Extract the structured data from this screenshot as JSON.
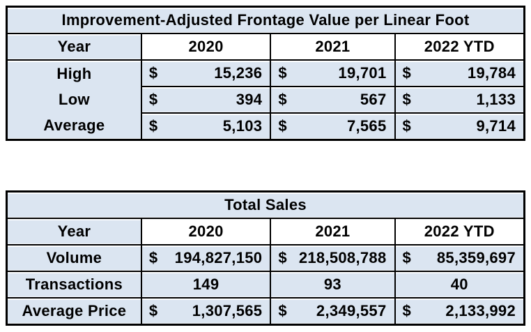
{
  "currency_symbol": "$",
  "colors": {
    "cell_blue": "#dbe5f1",
    "cell_white": "#ffffff",
    "border_black": "#000000",
    "text_black": "#000000"
  },
  "tables": [
    {
      "title": "Improvement-Adjusted Frontage Value per Linear Foot",
      "year_header": {
        "label": "Year",
        "years": [
          "2020",
          "2021",
          "2022 YTD"
        ]
      },
      "rows": [
        {
          "label": "High",
          "currency": true,
          "values": [
            "15,236",
            "19,701",
            "19,784"
          ]
        },
        {
          "label": "Low",
          "currency": true,
          "values": [
            "394",
            "567",
            "1,133"
          ]
        },
        {
          "label": "Average",
          "currency": true,
          "values": [
            "5,103",
            "7,565",
            "9,714"
          ]
        }
      ]
    },
    {
      "title": "Total Sales",
      "year_header": {
        "label": "Year",
        "years": [
          "2020",
          "2021",
          "2022 YTD"
        ]
      },
      "rows": [
        {
          "label": "Volume",
          "currency": true,
          "values": [
            "194,827,150",
            "218,508,788",
            "85,359,697"
          ]
        },
        {
          "label": "Transactions",
          "currency": false,
          "values": [
            "149",
            "93",
            "40"
          ]
        },
        {
          "label": "Average Price",
          "currency": true,
          "values": [
            "1,307,565",
            "2,349,557",
            "2,133,992"
          ]
        }
      ]
    }
  ],
  "chart_data": [
    {
      "type": "table",
      "title": "Improvement-Adjusted Frontage Value per Linear Foot",
      "columns": [
        "Year",
        "2020",
        "2021",
        "2022 YTD"
      ],
      "rows": [
        [
          "High",
          15236,
          19701,
          19784
        ],
        [
          "Low",
          394,
          567,
          1133
        ],
        [
          "Average",
          5103,
          7565,
          9714
        ]
      ],
      "value_unit": "USD per linear foot"
    },
    {
      "type": "table",
      "title": "Total Sales",
      "columns": [
        "Year",
        "2020",
        "2021",
        "2022 YTD"
      ],
      "rows": [
        [
          "Volume",
          194827150,
          218508788,
          85359697
        ],
        [
          "Transactions",
          149,
          93,
          40
        ],
        [
          "Average Price",
          1307565,
          2349557,
          2133992
        ]
      ],
      "value_unit": "USD (Transactions is a count)"
    }
  ]
}
